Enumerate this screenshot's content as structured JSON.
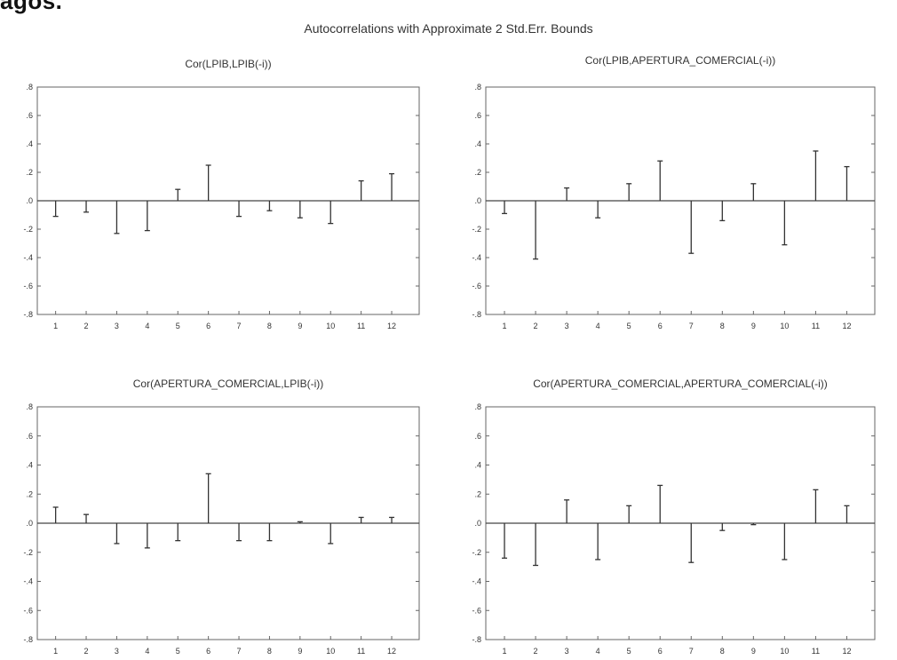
{
  "heading": "agos.",
  "suptitle": "Autocorrelations with Approximate 2 Std.Err. Bounds",
  "chart_data": [
    {
      "type": "bar",
      "title": "Cor(LPIB,LPIB(-i))",
      "categories": [
        "1",
        "2",
        "3",
        "4",
        "5",
        "6",
        "7",
        "8",
        "9",
        "10",
        "11",
        "12"
      ],
      "values": [
        -0.11,
        -0.08,
        -0.23,
        -0.21,
        0.08,
        0.25,
        -0.11,
        -0.07,
        -0.12,
        -0.16,
        0.14,
        0.19
      ],
      "ylim": [
        -0.8,
        0.8
      ],
      "yticks": [
        0.8,
        0.6,
        0.4,
        0.2,
        0.0,
        -0.2,
        -0.4,
        -0.6,
        -0.8
      ],
      "ytick_labels": [
        ".8",
        ".6",
        ".4",
        ".2",
        ".0",
        "-.2",
        "-.4",
        "-.6",
        "-.8"
      ]
    },
    {
      "type": "bar",
      "title": "Cor(LPIB,APERTURA_COMERCIAL(-i))",
      "categories": [
        "1",
        "2",
        "3",
        "4",
        "5",
        "6",
        "7",
        "8",
        "9",
        "10",
        "11",
        "12"
      ],
      "values": [
        -0.09,
        -0.41,
        0.09,
        -0.12,
        0.12,
        0.28,
        -0.37,
        -0.14,
        0.12,
        -0.31,
        0.35,
        0.24
      ],
      "ylim": [
        -0.8,
        0.8
      ],
      "yticks": [
        0.8,
        0.6,
        0.4,
        0.2,
        0.0,
        -0.2,
        -0.4,
        -0.6,
        -0.8
      ],
      "ytick_labels": [
        ".8",
        ".6",
        ".4",
        ".2",
        ".0",
        "-.2",
        "-.4",
        "-.6",
        "-.8"
      ]
    },
    {
      "type": "bar",
      "title": "Cor(APERTURA_COMERCIAL,LPIB(-i))",
      "categories": [
        "1",
        "2",
        "3",
        "4",
        "5",
        "6",
        "7",
        "8",
        "9",
        "10",
        "11",
        "12"
      ],
      "values": [
        0.11,
        0.06,
        -0.14,
        -0.17,
        -0.12,
        0.34,
        -0.12,
        -0.12,
        0.01,
        -0.14,
        0.04,
        0.04
      ],
      "ylim": [
        -0.8,
        0.8
      ],
      "yticks": [
        0.8,
        0.6,
        0.4,
        0.2,
        0.0,
        -0.2,
        -0.4,
        -0.6,
        -0.8
      ],
      "ytick_labels": [
        ".8",
        ".6",
        ".4",
        ".2",
        ".0",
        "-.2",
        "-.4",
        "-.6",
        "-.8"
      ]
    },
    {
      "type": "bar",
      "title": "Cor(APERTURA_COMERCIAL,APERTURA_COMERCIAL(-i))",
      "categories": [
        "1",
        "2",
        "3",
        "4",
        "5",
        "6",
        "7",
        "8",
        "9",
        "10",
        "11",
        "12"
      ],
      "values": [
        -0.24,
        -0.29,
        0.16,
        -0.25,
        0.12,
        0.26,
        -0.27,
        -0.05,
        -0.01,
        -0.25,
        0.23,
        0.12
      ],
      "ylim": [
        -0.8,
        0.8
      ],
      "yticks": [
        0.8,
        0.6,
        0.4,
        0.2,
        0.0,
        -0.2,
        -0.4,
        -0.6,
        -0.8
      ],
      "ytick_labels": [
        ".8",
        ".6",
        ".4",
        ".2",
        ".0",
        "-.2",
        "-.4",
        "-.6",
        "-.8"
      ]
    }
  ]
}
